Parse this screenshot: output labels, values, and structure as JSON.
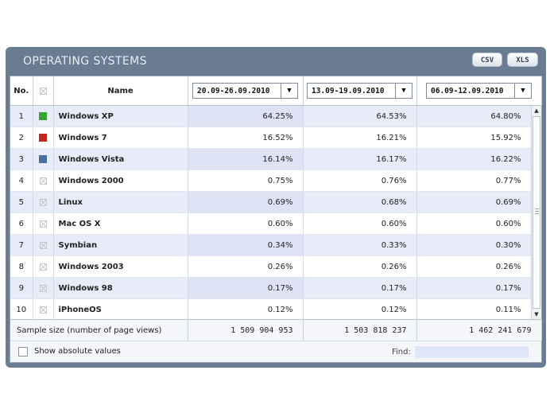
{
  "panel": {
    "title": "OPERATING SYSTEMS"
  },
  "toolbar": {
    "csv_label": "CSV",
    "xls_label": "XLS"
  },
  "header": {
    "no_label": "No.",
    "name_label": "Name",
    "periods": [
      "20.09-26.09.2010",
      "13.09-19.09.2010",
      "06.09-12.09.2010"
    ]
  },
  "rows": [
    {
      "no": "1",
      "name": "Windows XP",
      "color": "#3aa336",
      "values": [
        "64.25%",
        "64.53%",
        "64.80%"
      ]
    },
    {
      "no": "2",
      "name": "Windows 7",
      "color": "#c0281f",
      "values": [
        "16.52%",
        "16.21%",
        "15.92%"
      ]
    },
    {
      "no": "3",
      "name": "Windows Vista",
      "color": "#4a6f9c",
      "values": [
        "16.14%",
        "16.17%",
        "16.22%"
      ]
    },
    {
      "no": "4",
      "name": "Windows 2000",
      "color": "",
      "values": [
        "0.75%",
        "0.76%",
        "0.77%"
      ]
    },
    {
      "no": "5",
      "name": "Linux",
      "color": "",
      "values": [
        "0.69%",
        "0.68%",
        "0.69%"
      ]
    },
    {
      "no": "6",
      "name": "Mac OS X",
      "color": "",
      "values": [
        "0.60%",
        "0.60%",
        "0.60%"
      ]
    },
    {
      "no": "7",
      "name": "Symbian",
      "color": "",
      "values": [
        "0.34%",
        "0.33%",
        "0.30%"
      ]
    },
    {
      "no": "8",
      "name": "Windows 2003",
      "color": "",
      "values": [
        "0.26%",
        "0.26%",
        "0.26%"
      ]
    },
    {
      "no": "9",
      "name": "Windows 98",
      "color": "",
      "values": [
        "0.17%",
        "0.17%",
        "0.17%"
      ]
    },
    {
      "no": "10",
      "name": "iPhoneOS",
      "color": "",
      "values": [
        "0.12%",
        "0.12%",
        "0.11%"
      ]
    }
  ],
  "footer": {
    "sample_label": "Sample size (number of page views)",
    "sample_values": [
      "1 509 904 953",
      "1 503 818 237",
      "1 462 241 679"
    ]
  },
  "options": {
    "show_absolute_label": "Show absolute values",
    "show_absolute_checked": false,
    "find_label": "Find:",
    "find_value": ""
  },
  "icons": {
    "dropdown": "triangle-down",
    "no_color": "crossed-box",
    "scroll_up": "triangle-up",
    "scroll_down": "triangle-down"
  }
}
